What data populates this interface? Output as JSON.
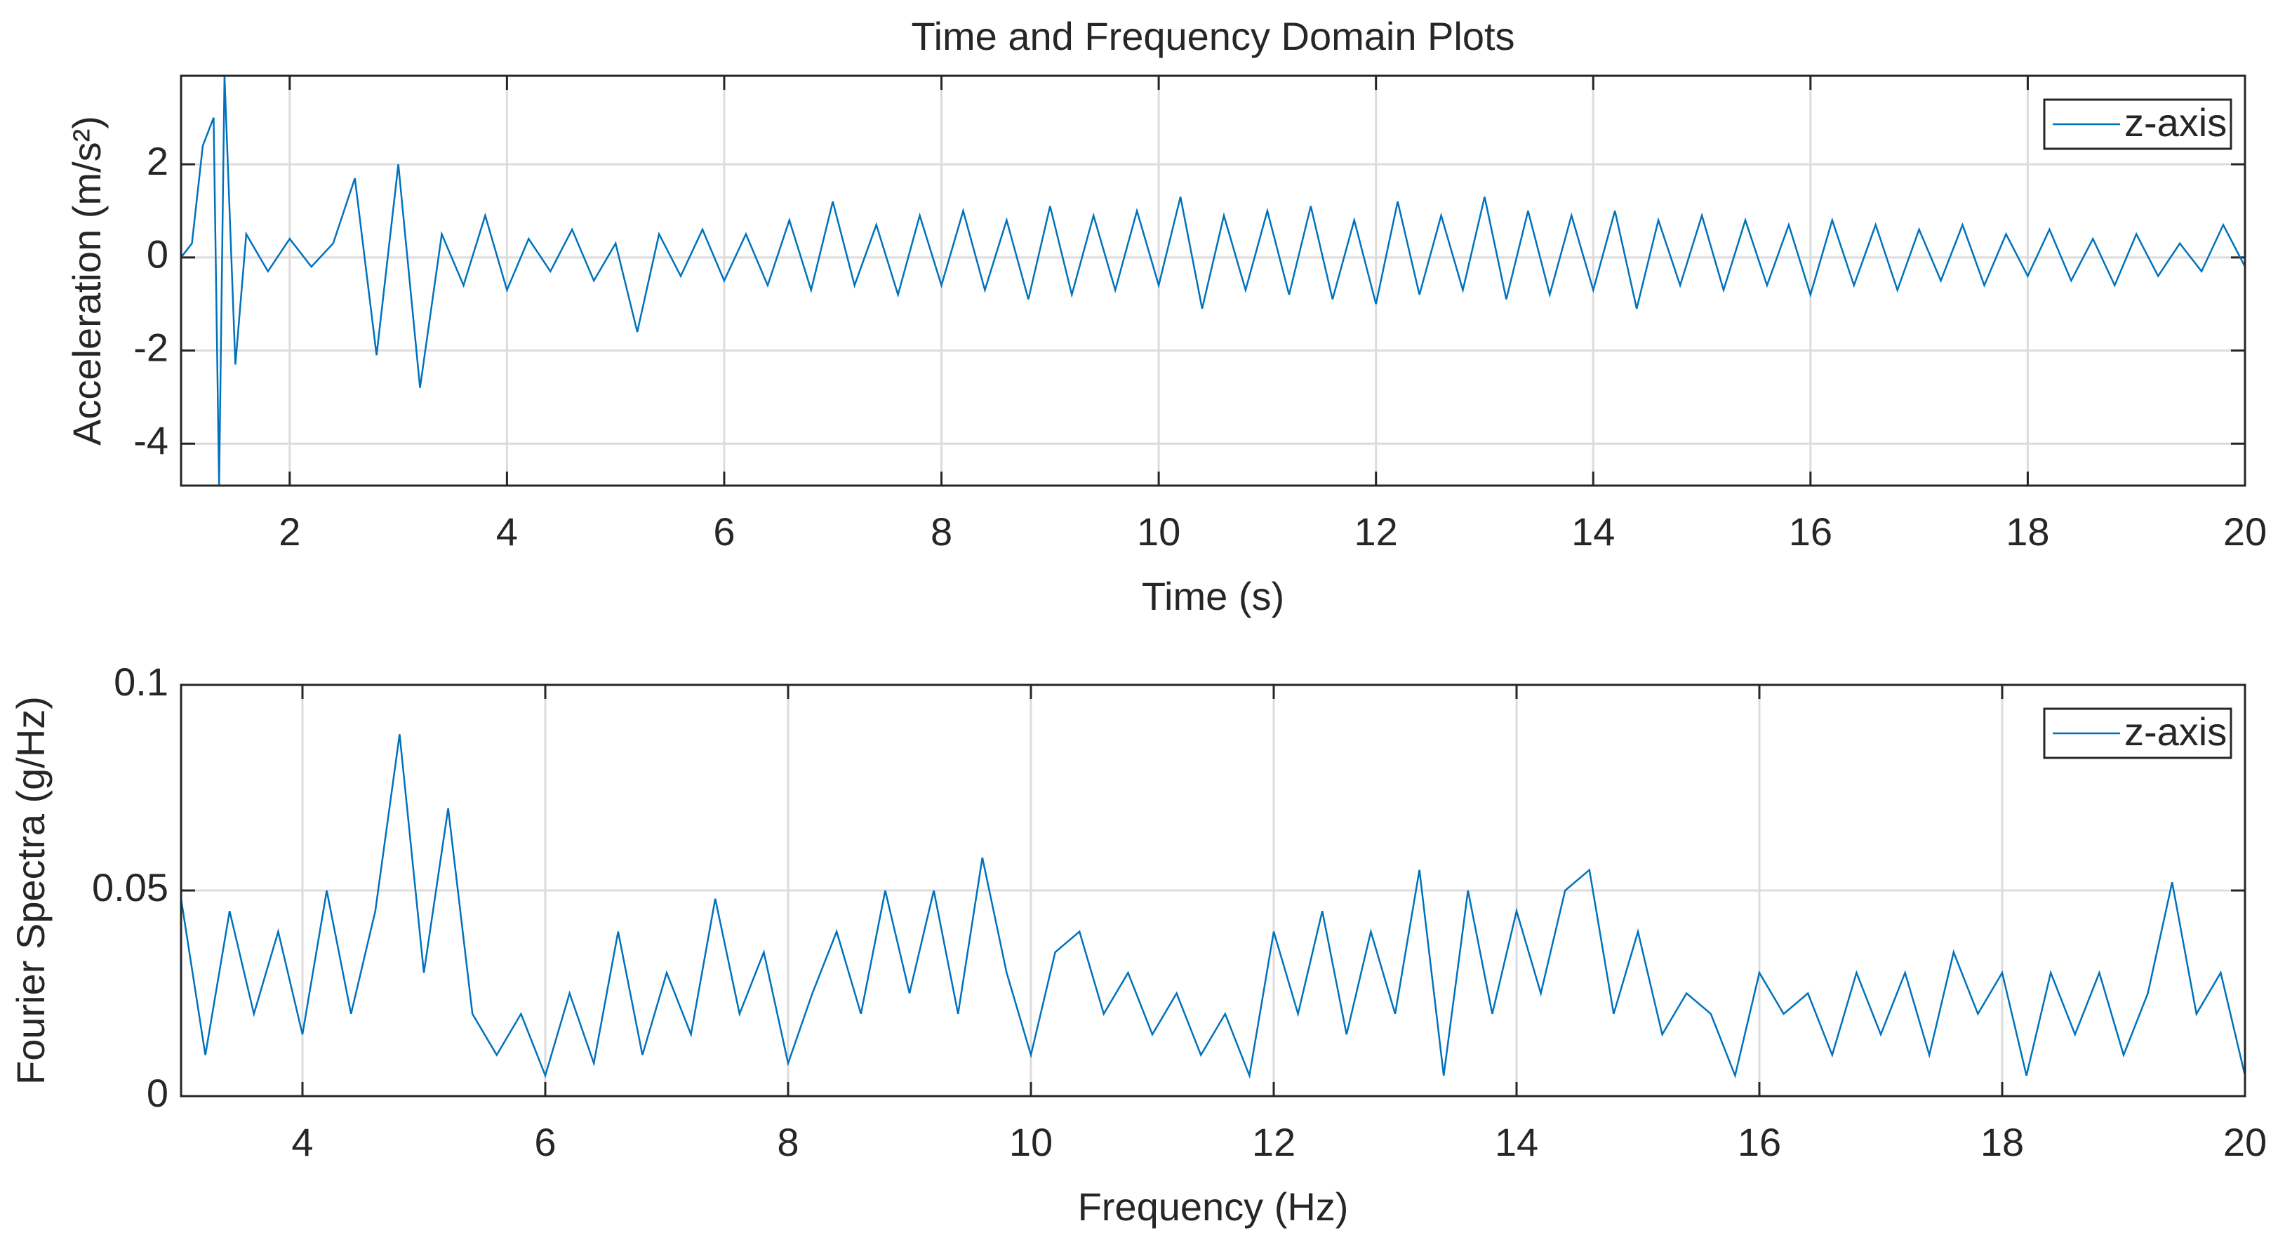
{
  "chart_data": [
    {
      "type": "line",
      "title": "Time and Frequency Domain Plots",
      "xlabel": "Time (s)",
      "ylabel": "Acceleration (m/s²)",
      "x": [
        1,
        1.1,
        1.2,
        1.3,
        1.35,
        1.4,
        1.5,
        1.6,
        1.8,
        2.0,
        2.2,
        2.4,
        2.6,
        2.8,
        3.0,
        3.2,
        3.4,
        3.6,
        3.8,
        4.0,
        4.2,
        4.4,
        4.6,
        4.8,
        5.0,
        5.2,
        5.4,
        5.6,
        5.8,
        6.0,
        6.2,
        6.4,
        6.6,
        6.8,
        7.0,
        7.2,
        7.4,
        7.6,
        7.8,
        8.0,
        8.2,
        8.4,
        8.6,
        8.8,
        9.0,
        9.2,
        9.4,
        9.6,
        9.8,
        10.0,
        10.2,
        10.4,
        10.6,
        10.8,
        11.0,
        11.2,
        11.4,
        11.6,
        11.8,
        12.0,
        12.2,
        12.4,
        12.6,
        12.8,
        13.0,
        13.2,
        13.4,
        13.6,
        13.8,
        14.0,
        14.2,
        14.4,
        14.6,
        14.8,
        15.0,
        15.2,
        15.4,
        15.6,
        15.8,
        16.0,
        16.2,
        16.4,
        16.6,
        16.8,
        17.0,
        17.2,
        17.4,
        17.6,
        17.8,
        18.0,
        18.2,
        18.4,
        18.6,
        18.8,
        19.0,
        19.2,
        19.4,
        19.6,
        19.8,
        20.0
      ],
      "series": [
        {
          "name": "z-axis",
          "color": "#0072bd",
          "values": [
            0,
            0.3,
            2.4,
            3.0,
            -4.9,
            3.9,
            -2.3,
            0.5,
            -0.3,
            0.4,
            -0.2,
            0.3,
            1.7,
            -2.1,
            2.0,
            -2.8,
            0.5,
            -0.6,
            0.9,
            -0.7,
            0.4,
            -0.3,
            0.6,
            -0.5,
            0.3,
            -1.6,
            0.5,
            -0.4,
            0.6,
            -0.5,
            0.5,
            -0.6,
            0.8,
            -0.7,
            1.2,
            -0.6,
            0.7,
            -0.8,
            0.9,
            -0.6,
            1.0,
            -0.7,
            0.8,
            -0.9,
            1.1,
            -0.8,
            0.9,
            -0.7,
            1.0,
            -0.6,
            1.3,
            -1.1,
            0.9,
            -0.7,
            1.0,
            -0.8,
            1.1,
            -0.9,
            0.8,
            -1.0,
            1.2,
            -0.8,
            0.9,
            -0.7,
            1.3,
            -0.9,
            1.0,
            -0.8,
            0.9,
            -0.7,
            1.0,
            -1.1,
            0.8,
            -0.6,
            0.9,
            -0.7,
            0.8,
            -0.6,
            0.7,
            -0.8,
            0.8,
            -0.6,
            0.7,
            -0.7,
            0.6,
            -0.5,
            0.7,
            -0.6,
            0.5,
            -0.4,
            0.6,
            -0.5,
            0.4,
            -0.6,
            0.5,
            -0.4,
            0.3,
            -0.3,
            0.7,
            -0.2
          ]
        }
      ],
      "xlim": [
        1,
        20
      ],
      "xticks": [
        2,
        4,
        6,
        8,
        10,
        12,
        14,
        16,
        18,
        20
      ],
      "ylim": [
        -4.9,
        3.9
      ],
      "yticks": [
        -4,
        -2,
        0,
        2
      ],
      "grid": true,
      "legend": "upper right"
    },
    {
      "type": "line",
      "xlabel": "Frequency (Hz)",
      "ylabel": "Fourier Spectra (g/Hz)",
      "x": [
        3.0,
        3.2,
        3.4,
        3.6,
        3.8,
        4.0,
        4.2,
        4.4,
        4.6,
        4.8,
        5.0,
        5.2,
        5.4,
        5.6,
        5.8,
        6.0,
        6.2,
        6.4,
        6.6,
        6.8,
        7.0,
        7.2,
        7.4,
        7.6,
        7.8,
        8.0,
        8.2,
        8.4,
        8.6,
        8.8,
        9.0,
        9.2,
        9.4,
        9.6,
        9.8,
        10.0,
        10.2,
        10.4,
        10.6,
        10.8,
        11.0,
        11.2,
        11.4,
        11.6,
        11.8,
        12.0,
        12.2,
        12.4,
        12.6,
        12.8,
        13.0,
        13.2,
        13.4,
        13.6,
        13.8,
        14.0,
        14.2,
        14.4,
        14.6,
        14.8,
        15.0,
        15.2,
        15.4,
        15.6,
        15.8,
        16.0,
        16.2,
        16.4,
        16.6,
        16.8,
        17.0,
        17.2,
        17.4,
        17.6,
        17.8,
        18.0,
        18.2,
        18.4,
        18.6,
        18.8,
        19.0,
        19.2,
        19.4,
        19.6,
        19.8,
        20.0
      ],
      "series": [
        {
          "name": "z-axis",
          "color": "#0072bd",
          "values": [
            0.048,
            0.01,
            0.045,
            0.02,
            0.04,
            0.015,
            0.05,
            0.02,
            0.045,
            0.088,
            0.03,
            0.07,
            0.02,
            0.01,
            0.02,
            0.005,
            0.025,
            0.008,
            0.04,
            0.01,
            0.03,
            0.015,
            0.048,
            0.02,
            0.035,
            0.008,
            0.025,
            0.04,
            0.02,
            0.05,
            0.025,
            0.05,
            0.02,
            0.058,
            0.03,
            0.01,
            0.035,
            0.04,
            0.02,
            0.03,
            0.015,
            0.025,
            0.01,
            0.02,
            0.005,
            0.04,
            0.02,
            0.045,
            0.015,
            0.04,
            0.02,
            0.055,
            0.005,
            0.05,
            0.02,
            0.045,
            0.025,
            0.05,
            0.055,
            0.02,
            0.04,
            0.015,
            0.025,
            0.02,
            0.005,
            0.03,
            0.02,
            0.025,
            0.01,
            0.03,
            0.015,
            0.03,
            0.01,
            0.035,
            0.02,
            0.03,
            0.005,
            0.03,
            0.015,
            0.03,
            0.01,
            0.025,
            0.052,
            0.02,
            0.03,
            0.005
          ]
        }
      ],
      "xlim": [
        3,
        20
      ],
      "xticks": [
        4,
        6,
        8,
        10,
        12,
        14,
        16,
        18,
        20
      ],
      "ylim": [
        0,
        0.1
      ],
      "yticks": [
        0,
        0.05,
        0.1
      ],
      "grid": true,
      "legend": "upper right"
    }
  ]
}
